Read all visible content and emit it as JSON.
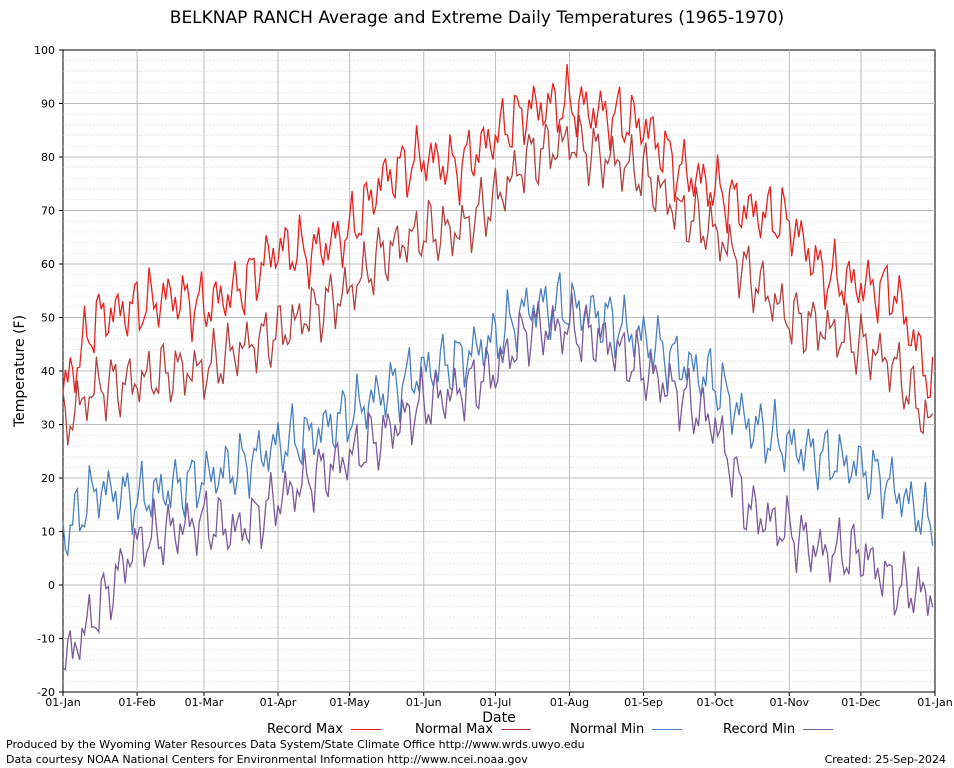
{
  "chart_data": {
    "type": "line",
    "title": "BELKNAP RANCH Average and Extreme Daily Temperatures (1965-1970)",
    "xlabel": "Date",
    "ylabel": "Temperature (F)",
    "ylim": [
      -20,
      100
    ],
    "yticks": [
      "100",
      "90",
      "80",
      "70",
      "60",
      "50",
      "40",
      "30",
      "20",
      "10",
      "0",
      "-10",
      "-20"
    ],
    "xticks": [
      "01-Jan",
      "01-Feb",
      "01-Mar",
      "01-Apr",
      "01-May",
      "01-Jun",
      "01-Jul",
      "01-Aug",
      "01-Sep",
      "01-Oct",
      "01-Nov",
      "01-Dec",
      "01-Jan"
    ],
    "grid": true,
    "legend_position": "bottom",
    "series": [
      {
        "name": "Record Max",
        "color": "#e8201e",
        "x": [
          "01-Jan",
          "15-Jan",
          "01-Feb",
          "15-Feb",
          "01-Mar",
          "15-Mar",
          "01-Apr",
          "15-Apr",
          "01-May",
          "15-May",
          "01-Jun",
          "15-Jun",
          "01-Jul",
          "15-Jul",
          "01-Aug",
          "15-Aug",
          "01-Sep",
          "15-Sep",
          "01-Oct",
          "15-Oct",
          "01-Nov",
          "15-Nov",
          "01-Dec",
          "15-Dec",
          "31-Dec"
        ],
        "values": [
          36,
          50,
          52,
          54,
          52,
          55,
          63,
          62,
          66,
          76,
          80,
          78,
          84,
          89,
          90,
          88,
          86,
          78,
          74,
          70,
          68,
          58,
          56,
          55,
          37
        ]
      },
      {
        "name": "Normal Max",
        "color": "#b44040",
        "x": [
          "01-Jan",
          "15-Jan",
          "01-Feb",
          "15-Feb",
          "01-Mar",
          "15-Mar",
          "01-Apr",
          "15-Apr",
          "01-May",
          "15-May",
          "01-Jun",
          "15-Jun",
          "01-Jul",
          "15-Jul",
          "01-Aug",
          "15-Aug",
          "01-Sep",
          "15-Sep",
          "01-Oct",
          "15-Oct",
          "01-Nov",
          "15-Nov",
          "01-Dec",
          "15-Dec",
          "31-Dec"
        ],
        "values": [
          30,
          37,
          38,
          40,
          40,
          44,
          47,
          51,
          55,
          62,
          66,
          66,
          72,
          80,
          83,
          80,
          77,
          70,
          66,
          58,
          50,
          48,
          45,
          41,
          29
        ]
      },
      {
        "name": "Normal Min",
        "color": "#4a7fbf",
        "x": [
          "01-Jan",
          "15-Jan",
          "01-Feb",
          "15-Feb",
          "01-Mar",
          "15-Mar",
          "01-Apr",
          "15-Apr",
          "01-May",
          "15-May",
          "01-Jun",
          "15-Jun",
          "01-Jul",
          "15-Jul",
          "01-Aug",
          "15-Aug",
          "01-Sep",
          "15-Sep",
          "01-Oct",
          "15-Oct",
          "01-Nov",
          "15-Nov",
          "01-Dec",
          "15-Dec",
          "31-Dec"
        ],
        "values": [
          9,
          18,
          16,
          18,
          20,
          22,
          26,
          28,
          32,
          36,
          40,
          42,
          46,
          52,
          52,
          50,
          46,
          42,
          38,
          30,
          26,
          24,
          22,
          18,
          11
        ]
      },
      {
        "name": "Record Min",
        "color": "#7a5a9a",
        "x": [
          "01-Jan",
          "15-Jan",
          "01-Feb",
          "15-Feb",
          "01-Mar",
          "15-Mar",
          "01-Apr",
          "15-Apr",
          "01-May",
          "15-May",
          "01-Jun",
          "15-Jun",
          "01-Jul",
          "15-Jul",
          "01-Aug",
          "15-Aug",
          "01-Sep",
          "15-Sep",
          "01-Oct",
          "15-Oct",
          "01-Nov",
          "15-Nov",
          "01-Dec",
          "15-Dec",
          "31-Dec"
        ],
        "values": [
          -15,
          -5,
          8,
          10,
          12,
          10,
          16,
          20,
          24,
          28,
          34,
          36,
          40,
          48,
          48,
          46,
          40,
          36,
          30,
          14,
          10,
          6,
          6,
          0,
          -2
        ]
      }
    ]
  },
  "footer": {
    "credit1": "Produced by the Wyoming Water Resources Data System/State Climate Office http://www.wrds.uwyo.edu",
    "credit2": "Data courtesy NOAA National Centers for Environmental Information http://www.ncei.noaa.gov",
    "created": "Created:  25-Sep-2024"
  }
}
